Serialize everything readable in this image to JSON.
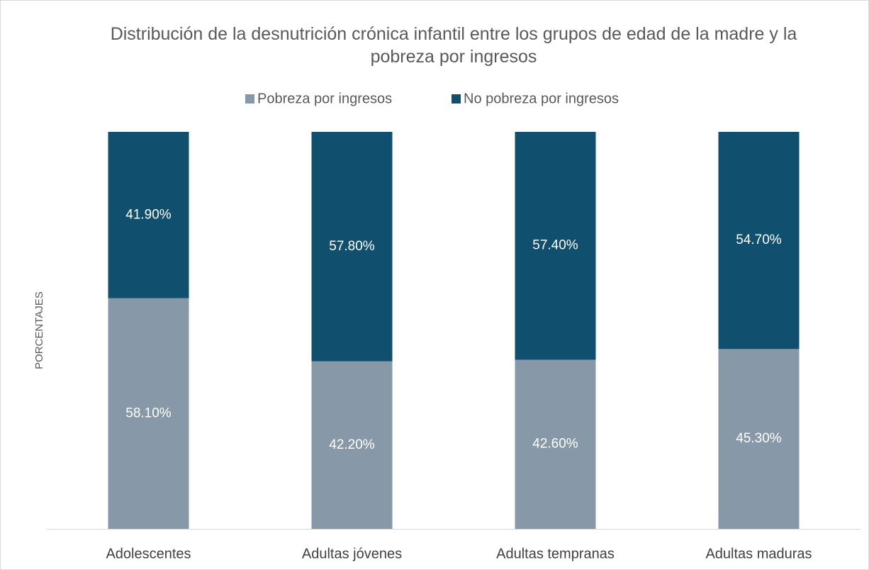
{
  "chart_data": {
    "type": "stacked_bar",
    "title": "Distribución de la desnutrición crónica infantil entre los grupos de edad de la madre y la pobreza por ingresos",
    "y_label": "PORCENTAJES",
    "categories": [
      "Adolescentes",
      "Adultas jóvenes",
      "Adultas tempranas",
      "Adultas maduras"
    ],
    "series": [
      {
        "name": "Pobreza por ingresos",
        "color": "#8799a9",
        "values": [
          58.1,
          42.2,
          42.6,
          45.3
        ],
        "value_labels": [
          "58.10%",
          "42.20%",
          "42.60%",
          "45.30%"
        ]
      },
      {
        "name": "No pobreza por ingresos",
        "color": "#10506e",
        "values": [
          41.9,
          57.8,
          57.4,
          54.7
        ],
        "value_labels": [
          "41.90%",
          "57.80%",
          "57.40%",
          "54.70%"
        ]
      }
    ],
    "ylim": [
      0,
      100
    ],
    "legend": "top"
  }
}
